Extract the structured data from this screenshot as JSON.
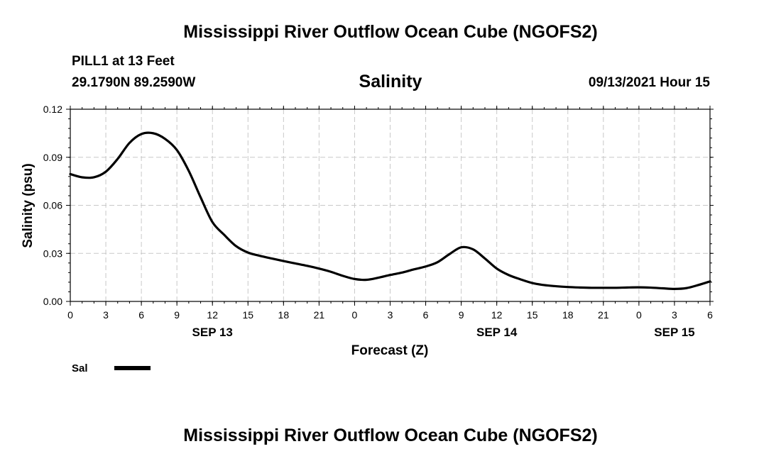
{
  "header": {
    "title": "Mississippi River Outflow Ocean Cube (NGOFS2)",
    "station": "PILL1 at 13 Feet",
    "coords": "29.1790N  89.2590W",
    "variable": "Salinity",
    "run_time": "09/13/2021 Hour 15"
  },
  "footer": {
    "title": "Mississippi River Outflow Ocean Cube (NGOFS2)"
  },
  "chart_data": {
    "type": "line",
    "title": "Salinity",
    "xlabel": "Forecast (Z)",
    "ylabel": "Salinity (psu)",
    "ylim": [
      0,
      0.12
    ],
    "xlim": [
      0,
      54
    ],
    "x_unit": "hours since 2021-09-13 00Z",
    "y_ticks": [
      "0.00",
      "0.03",
      "0.06",
      "0.09",
      "0.12"
    ],
    "y_tick_values": [
      0,
      0.03,
      0.06,
      0.09,
      0.12
    ],
    "x_ticks": [
      "0",
      "3",
      "6",
      "9",
      "12",
      "15",
      "18",
      "21",
      "0",
      "3",
      "6",
      "9",
      "12",
      "15",
      "18",
      "21",
      "0",
      "3",
      "6"
    ],
    "date_labels": [
      {
        "label": "SEP 13",
        "x": 12
      },
      {
        "label": "SEP 14",
        "x": 36
      },
      {
        "label": "SEP 15",
        "x": 51
      }
    ],
    "grid": true,
    "legend": [
      {
        "name": "Sal",
        "color": "#000000"
      }
    ],
    "series": [
      {
        "name": "Sal",
        "color": "#000000",
        "x": [
          0,
          1,
          2,
          3,
          4,
          5,
          6,
          7,
          8,
          9,
          10,
          11,
          12,
          13,
          14,
          15,
          16,
          17,
          18,
          19,
          20,
          21,
          22,
          23,
          24,
          25,
          26,
          27,
          28,
          29,
          30,
          31,
          32,
          33,
          34,
          35,
          36,
          37,
          38,
          39,
          40,
          41,
          42,
          43,
          44,
          45,
          46,
          47,
          48,
          49,
          50,
          51,
          52,
          53,
          54
        ],
        "values": [
          0.0795,
          0.0775,
          0.0775,
          0.081,
          0.089,
          0.099,
          0.1045,
          0.105,
          0.1015,
          0.0945,
          0.0815,
          0.065,
          0.0495,
          0.0415,
          0.0345,
          0.0305,
          0.0285,
          0.0268,
          0.0252,
          0.0237,
          0.0222,
          0.0205,
          0.0185,
          0.016,
          0.014,
          0.0135,
          0.0148,
          0.0165,
          0.018,
          0.02,
          0.0218,
          0.0245,
          0.0295,
          0.0338,
          0.0325,
          0.0268,
          0.0205,
          0.0165,
          0.0138,
          0.0115,
          0.0102,
          0.0095,
          0.009,
          0.0087,
          0.0085,
          0.0085,
          0.0085,
          0.0087,
          0.0088,
          0.0086,
          0.0082,
          0.0078,
          0.0083,
          0.0102,
          0.0125
        ]
      }
    ]
  }
}
